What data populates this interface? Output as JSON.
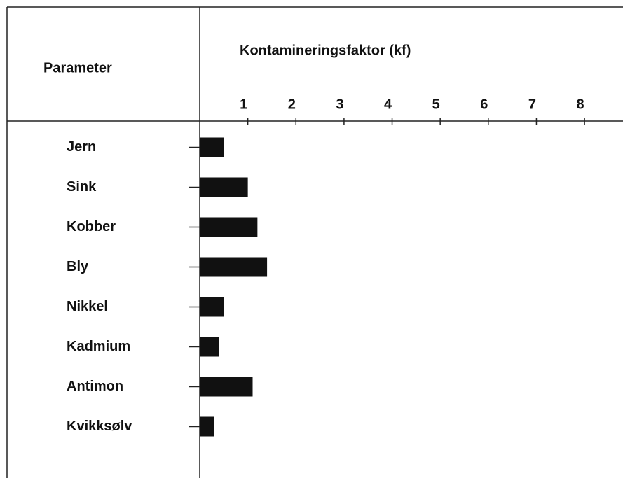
{
  "chart_data": {
    "type": "bar",
    "orientation": "horizontal",
    "title": "Kontamineringsfaktor (kf)",
    "category_header": "Parameter",
    "categories": [
      "Jern",
      "Sink",
      "Kobber",
      "Bly",
      "Nikkel",
      "Kadmium",
      "Antimon",
      "Kvikksølv"
    ],
    "values": [
      0.5,
      1.0,
      1.2,
      1.4,
      0.5,
      0.4,
      1.1,
      0.3
    ],
    "color": "#111111",
    "xlim": [
      0,
      8.8
    ],
    "xticks": [
      1,
      2,
      3,
      4,
      5,
      6,
      7,
      8
    ]
  }
}
